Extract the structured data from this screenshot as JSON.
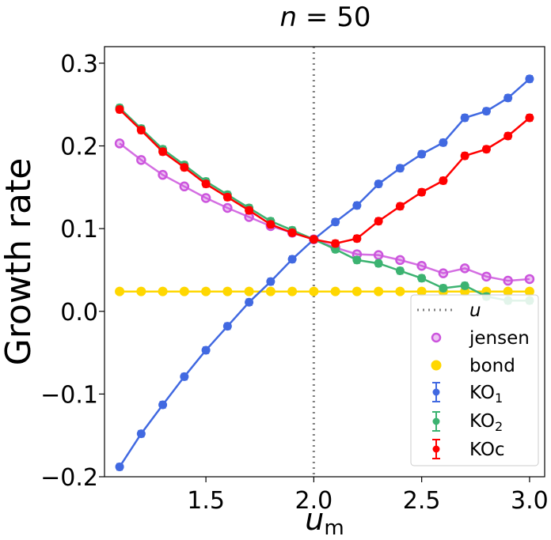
{
  "chart_data": {
    "type": "line",
    "title": {
      "var": "n",
      "eq": " = 50"
    },
    "xlabel": {
      "main": "u",
      "sub": "m"
    },
    "ylabel": "Growth rate",
    "xlim": [
      1.03,
      3.07
    ],
    "ylim": [
      -0.2,
      0.32
    ],
    "xticks": [
      1.5,
      2.0,
      2.5,
      3.0
    ],
    "xtick_labels": [
      "1.5",
      "2.0",
      "2.5",
      "3.0"
    ],
    "yticks": [
      -0.2,
      -0.1,
      0.0,
      0.1,
      0.2,
      0.3
    ],
    "ytick_labels": [
      "−0.2",
      "−0.1",
      "0.0",
      "0.1",
      "0.2",
      "0.3"
    ],
    "vline": {
      "x": 2.0,
      "label": "u",
      "color": "#808080"
    },
    "x": [
      1.1,
      1.2,
      1.3,
      1.4,
      1.5,
      1.6,
      1.7,
      1.8,
      1.9,
      2.0,
      2.1,
      2.2,
      2.3,
      2.4,
      2.5,
      2.6,
      2.7,
      2.8,
      2.9,
      3.0
    ],
    "series": [
      {
        "key": "jensen",
        "name": "jensen",
        "sub": "",
        "color": "#cc55dd",
        "style": "line-hollow",
        "values": [
          0.203,
          0.183,
          0.165,
          0.151,
          0.137,
          0.125,
          0.114,
          0.103,
          0.095,
          0.087,
          0.077,
          0.069,
          0.068,
          0.062,
          0.055,
          0.046,
          0.052,
          0.042,
          0.037,
          0.039
        ]
      },
      {
        "key": "bond",
        "name": "bond",
        "sub": "",
        "color": "#ffd700",
        "style": "line-filled",
        "values": [
          0.024,
          0.024,
          0.024,
          0.024,
          0.024,
          0.024,
          0.024,
          0.024,
          0.024,
          0.024,
          0.024,
          0.024,
          0.024,
          0.024,
          0.024,
          0.024,
          0.024,
          0.024,
          0.024,
          0.024
        ]
      },
      {
        "key": "ko1",
        "name": "KO",
        "sub": "1",
        "color": "#4169e1",
        "style": "errorbar",
        "values": [
          -0.188,
          -0.148,
          -0.113,
          -0.079,
          -0.047,
          -0.018,
          0.011,
          0.036,
          0.063,
          0.087,
          0.108,
          0.128,
          0.154,
          0.173,
          0.19,
          0.204,
          0.234,
          0.242,
          0.258,
          0.281
        ]
      },
      {
        "key": "ko2",
        "name": "KO",
        "sub": "2",
        "color": "#3cb371",
        "style": "errorbar",
        "values": [
          0.246,
          0.221,
          0.196,
          0.177,
          0.157,
          0.141,
          0.125,
          0.109,
          0.098,
          0.087,
          0.075,
          0.062,
          0.058,
          0.049,
          0.04,
          0.028,
          0.031,
          0.018,
          0.013,
          0.013
        ]
      },
      {
        "key": "koc",
        "name": "KOc",
        "sub": "",
        "color": "#ff0000",
        "style": "errorbar",
        "values": [
          0.244,
          0.219,
          0.193,
          0.174,
          0.154,
          0.138,
          0.122,
          0.105,
          0.095,
          0.087,
          0.082,
          0.088,
          0.109,
          0.127,
          0.144,
          0.158,
          0.188,
          0.196,
          0.212,
          0.234
        ]
      }
    ],
    "legend": {
      "position": "lower-right",
      "entries": [
        "u",
        "jensen",
        "bond",
        "KO1",
        "KO2",
        "KOc"
      ]
    }
  }
}
